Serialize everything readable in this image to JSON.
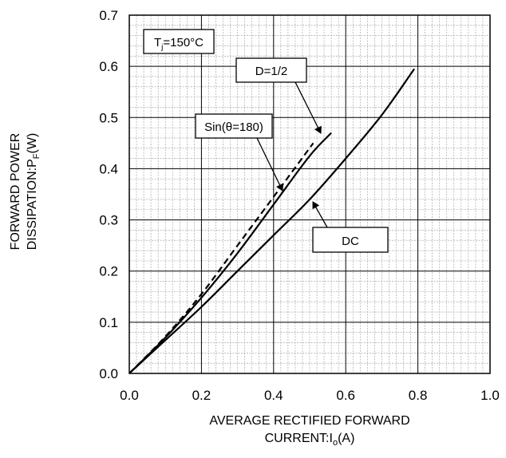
{
  "chart_data": {
    "type": "line",
    "xlabel": {
      "line1": "AVERAGE RECTIFIED FORWARD",
      "line2_prefix": "CURRENT:I",
      "line2_sub": "o",
      "line2_suffix": "(A)"
    },
    "ylabel": {
      "line1": "FORWARD POWER",
      "line2_prefix": "DISSIPATION:P",
      "line2_sub": "F",
      "line2_suffix": "(W)"
    },
    "xlim": [
      0,
      1.0
    ],
    "ylim": [
      0,
      0.7
    ],
    "xticks": [
      "0.0",
      "0.2",
      "0.4",
      "0.6",
      "0.8",
      "1.0"
    ],
    "yticks": [
      "0.0",
      "0.1",
      "0.2",
      "0.3",
      "0.4",
      "0.5",
      "0.6",
      "0.7"
    ],
    "grid": true,
    "series": [
      {
        "name": "DC",
        "style": "solid",
        "x": [
          0.0,
          0.1,
          0.2,
          0.3,
          0.4,
          0.5,
          0.6,
          0.7,
          0.79
        ],
        "y": [
          0.0,
          0.065,
          0.13,
          0.2,
          0.27,
          0.34,
          0.42,
          0.505,
          0.595
        ]
      },
      {
        "name": "D=1/2",
        "style": "solid",
        "x": [
          0.0,
          0.1,
          0.2,
          0.3,
          0.4,
          0.5,
          0.56
        ],
        "y": [
          0.0,
          0.07,
          0.148,
          0.235,
          0.33,
          0.425,
          0.47
        ]
      },
      {
        "name": "Sin(θ=180)",
        "style": "dashed",
        "x": [
          0.0,
          0.1,
          0.2,
          0.3,
          0.4,
          0.51
        ],
        "y": [
          0.0,
          0.072,
          0.155,
          0.25,
          0.345,
          0.45
        ]
      }
    ],
    "annotations": [
      {
        "id": "tj",
        "prefix": "T",
        "sub": "j",
        "suffix": "=150°C"
      },
      {
        "id": "d12",
        "text": "D=1/2"
      },
      {
        "id": "sin",
        "text": "Sin(θ=180)"
      },
      {
        "id": "dc",
        "text": "DC"
      }
    ]
  }
}
